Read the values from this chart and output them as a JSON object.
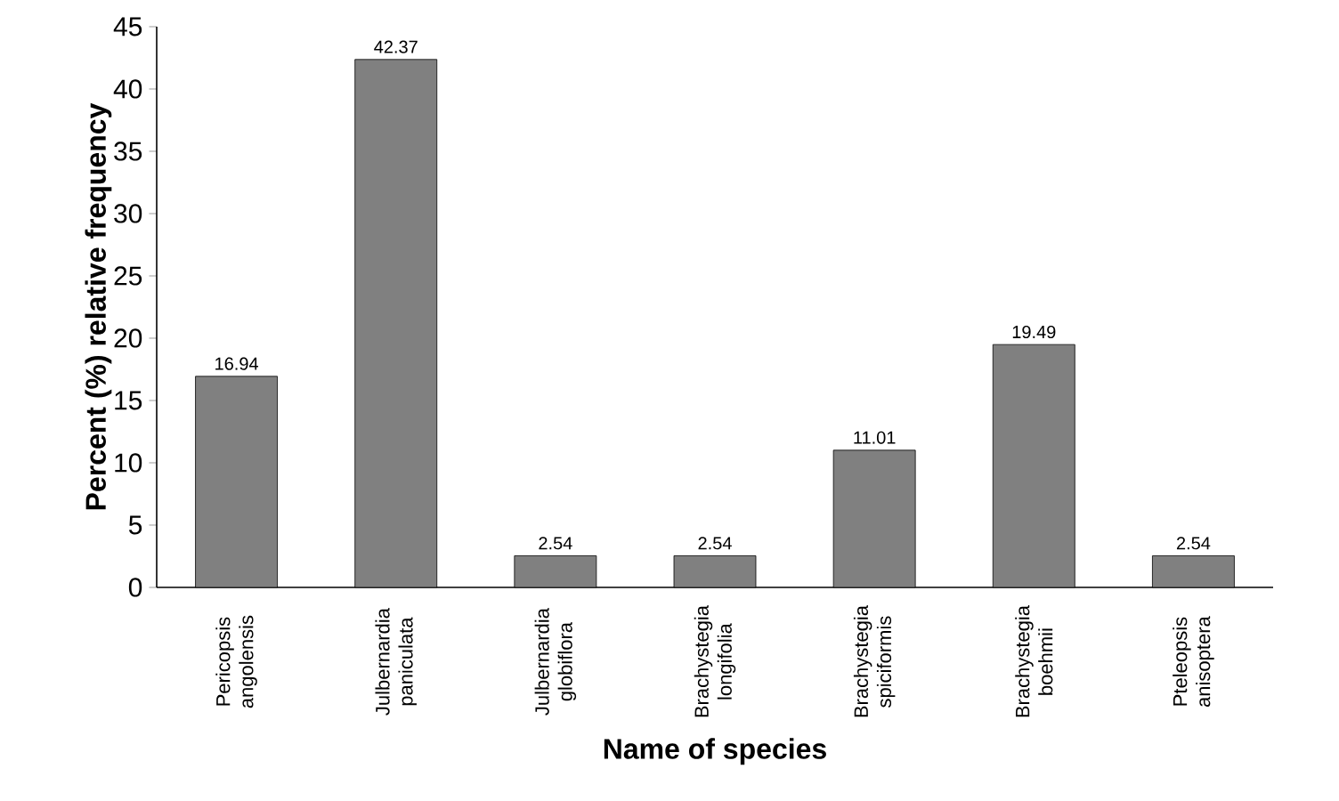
{
  "chart_data": {
    "type": "bar",
    "xlabel": "Name of species",
    "ylabel": "Percent (%) relative frequency",
    "categories": [
      "Pericopsis angolensis",
      "Julbernardia paniculata",
      "Julbernardia globiflora",
      "Brachystegia longifolia",
      "Brachystegia spiciformis",
      "Brachystegia boehmii",
      "Pteleopsis anisoptera"
    ],
    "values": [
      16.94,
      42.37,
      2.54,
      2.54,
      11.01,
      19.49,
      2.54
    ],
    "color": "#808080",
    "ylim": [
      0,
      45
    ],
    "yticks": [
      0,
      5,
      10,
      15,
      20,
      25,
      30,
      35,
      40,
      45
    ],
    "data_labels": true,
    "grid": false
  }
}
